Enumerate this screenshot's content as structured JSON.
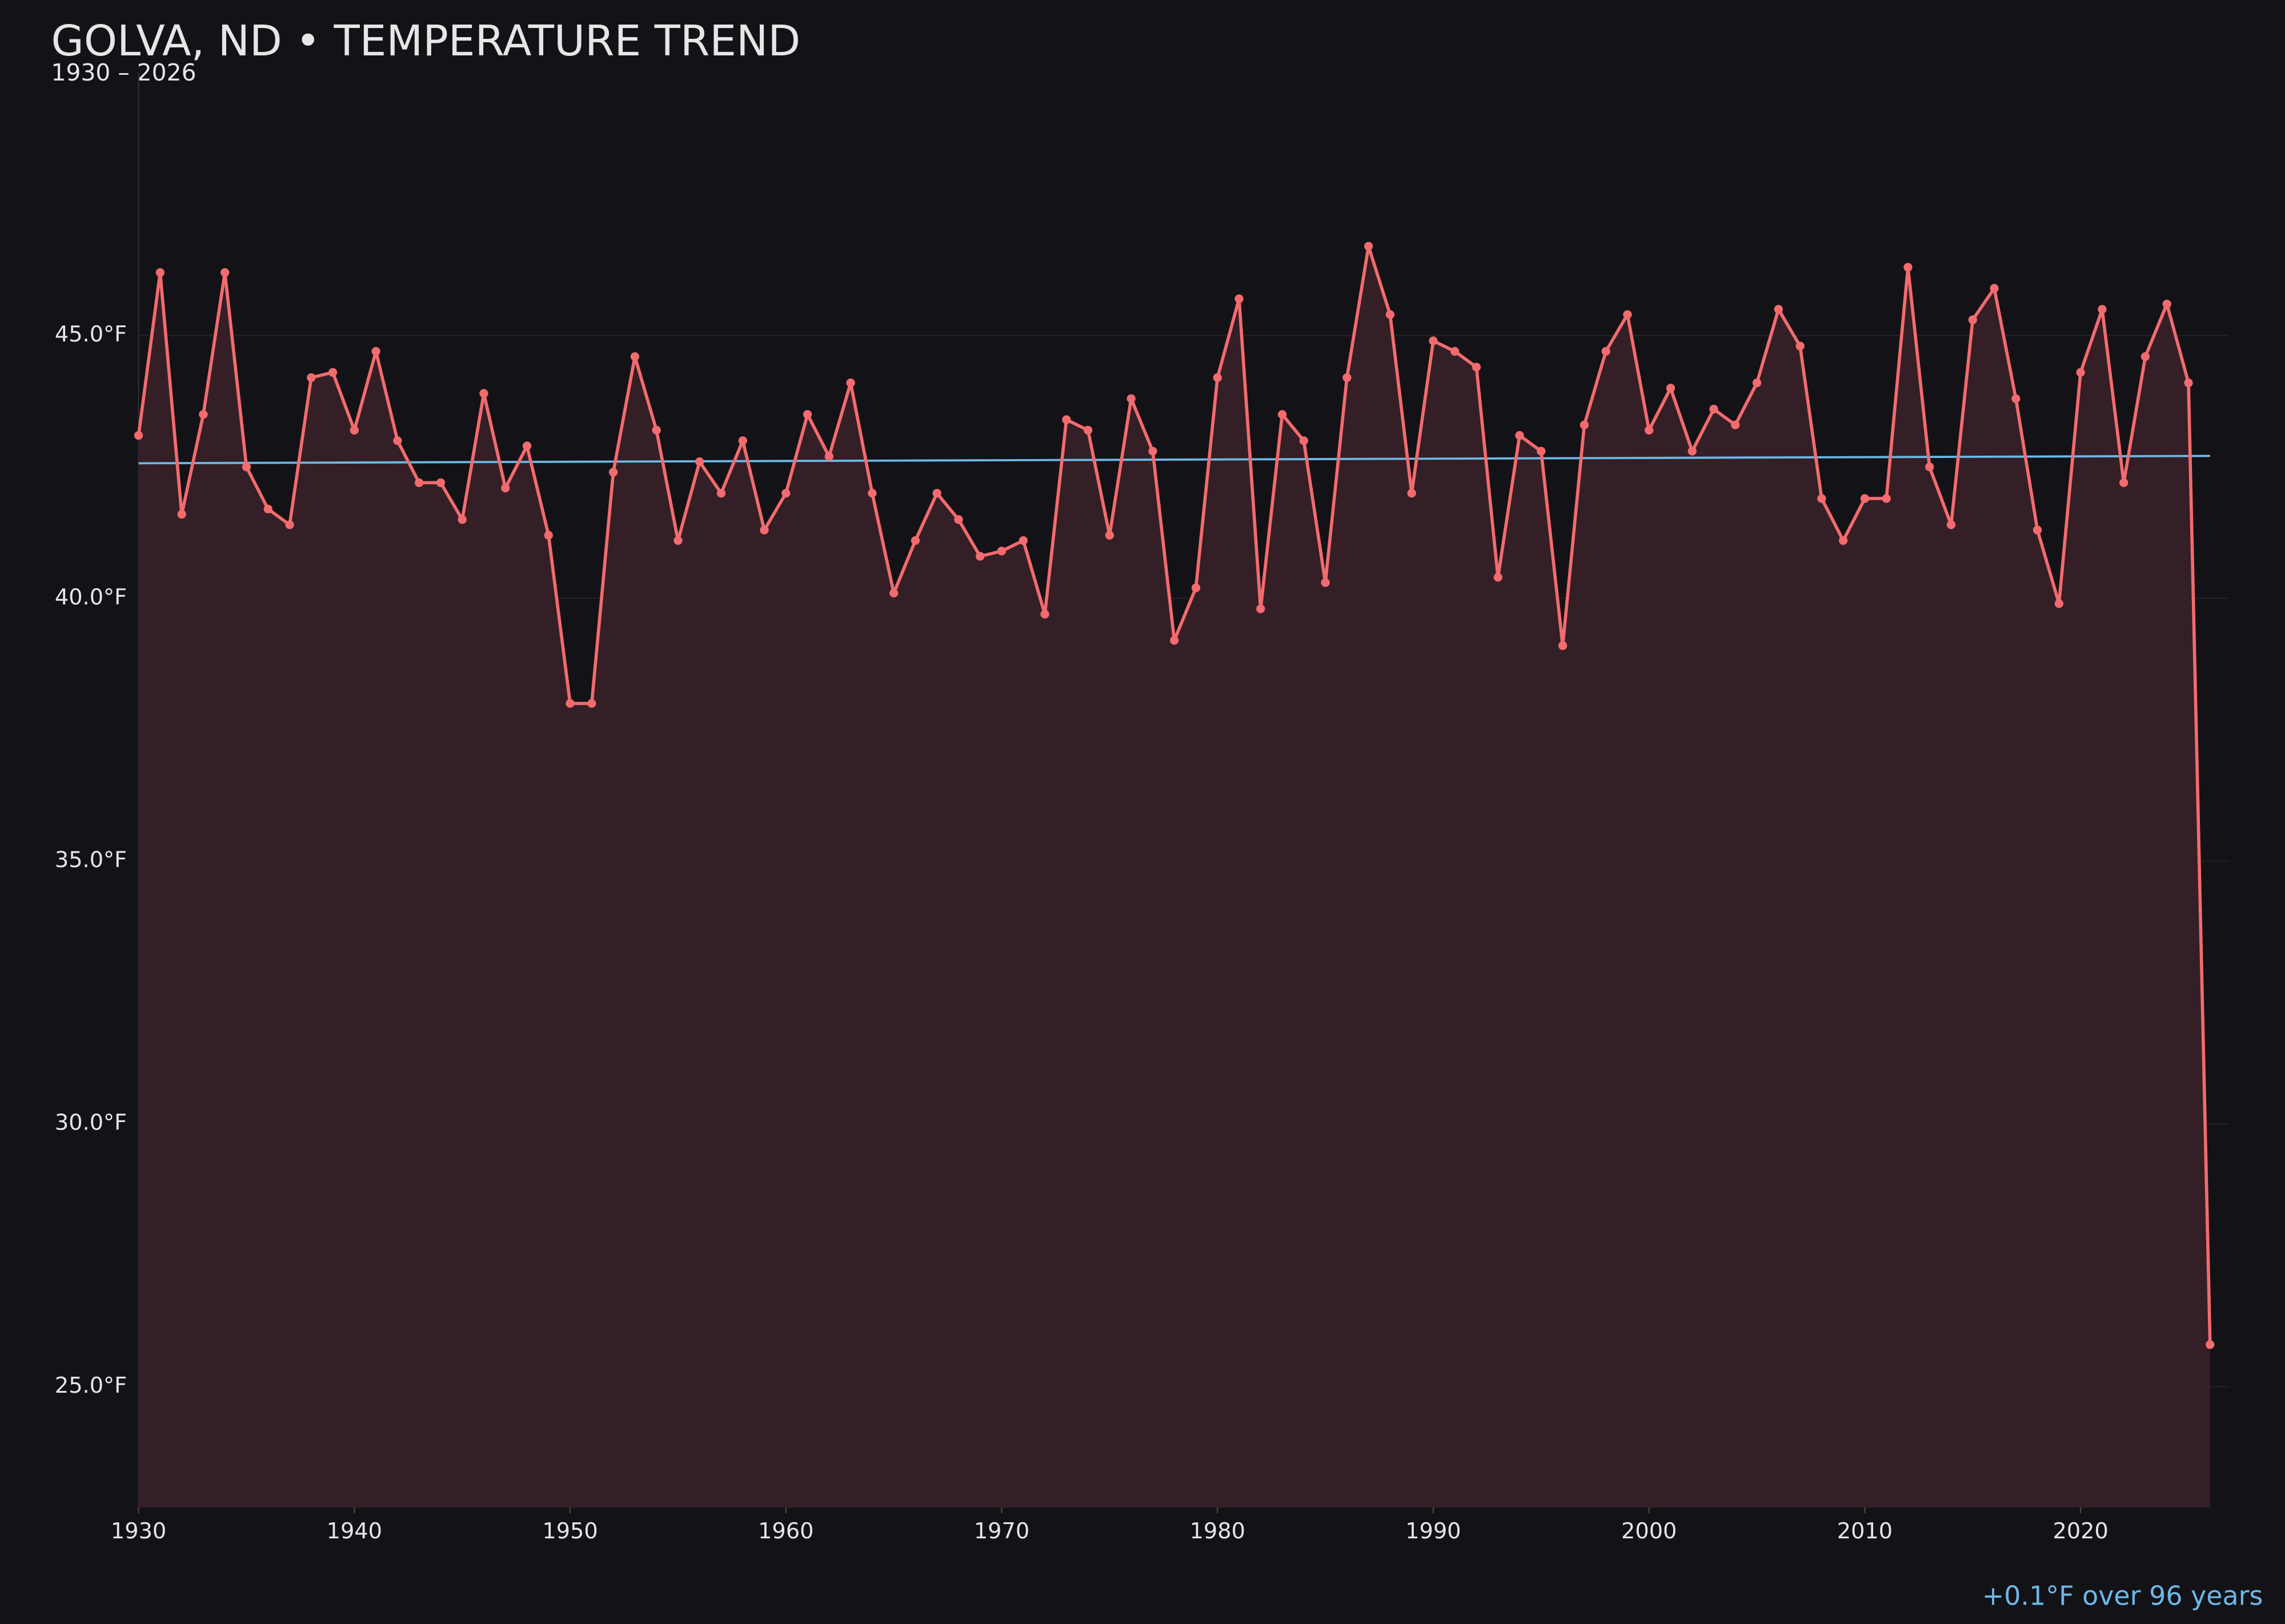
{
  "chart_data": {
    "type": "line",
    "title": "GOLVA, ND • TEMPERATURE TREND",
    "subtitle": "1930 – 2026",
    "annotation": "+0.1°F over 96 years",
    "x": [
      1930,
      1931,
      1932,
      1933,
      1934,
      1935,
      1936,
      1937,
      1938,
      1939,
      1940,
      1941,
      1942,
      1943,
      1944,
      1945,
      1946,
      1947,
      1948,
      1949,
      1950,
      1951,
      1952,
      1953,
      1954,
      1955,
      1956,
      1957,
      1958,
      1959,
      1960,
      1961,
      1962,
      1963,
      1964,
      1965,
      1966,
      1967,
      1968,
      1969,
      1970,
      1971,
      1972,
      1973,
      1974,
      1975,
      1976,
      1977,
      1978,
      1979,
      1980,
      1981,
      1982,
      1983,
      1984,
      1985,
      1986,
      1987,
      1988,
      1989,
      1990,
      1991,
      1992,
      1993,
      1994,
      1995,
      1996,
      1997,
      1998,
      1999,
      2000,
      2001,
      2002,
      2003,
      2004,
      2005,
      2006,
      2007,
      2008,
      2009,
      2010,
      2011,
      2012,
      2013,
      2014,
      2015,
      2016,
      2017,
      2018,
      2019,
      2020,
      2021,
      2022,
      2023,
      2024,
      2025,
      2026
    ],
    "values": [
      43.1,
      46.2,
      41.6,
      43.5,
      46.2,
      42.5,
      41.7,
      41.4,
      44.2,
      44.3,
      43.2,
      44.7,
      43.0,
      42.2,
      42.2,
      41.5,
      43.9,
      42.1,
      42.9,
      41.2,
      38.0,
      38.0,
      42.4,
      44.6,
      43.2,
      41.1,
      42.6,
      42.0,
      43.0,
      41.3,
      42.0,
      43.5,
      42.7,
      44.1,
      42.0,
      40.1,
      41.1,
      42.0,
      41.5,
      40.8,
      40.9,
      41.1,
      39.7,
      43.4,
      43.2,
      41.2,
      43.8,
      42.8,
      39.2,
      40.2,
      44.2,
      45.7,
      39.8,
      43.5,
      43.0,
      40.3,
      44.2,
      46.7,
      45.4,
      42.0,
      44.9,
      44.7,
      44.4,
      40.4,
      43.1,
      42.8,
      39.1,
      43.3,
      44.7,
      45.4,
      43.2,
      44.0,
      42.8,
      43.6,
      43.3,
      44.1,
      45.5,
      44.8,
      41.9,
      41.1,
      41.9,
      41.9,
      46.3,
      42.5,
      41.4,
      45.3,
      45.9,
      43.8,
      41.3,
      39.9,
      44.3,
      45.5,
      42.2,
      44.6,
      45.6,
      44.1,
      25.8
    ],
    "color": "#f26b6e",
    "area_color": "#341f26",
    "trend": {
      "x": [
        1930,
        2026
      ],
      "values": [
        42.57,
        42.71
      ],
      "color": "#6cb8e6"
    },
    "xlim": [
      1930,
      2026.9
    ],
    "ylim": [
      22.7,
      50.0
    ],
    "xticks": [
      1930,
      1940,
      1950,
      1960,
      1970,
      1980,
      1990,
      2000,
      2010,
      2020
    ],
    "yticks": [
      {
        "value": 25,
        "label": "25.0°F"
      },
      {
        "value": 30,
        "label": "30.0°F"
      },
      {
        "value": 35,
        "label": "35.0°F"
      },
      {
        "value": 40,
        "label": "40.0°F"
      },
      {
        "value": 45,
        "label": "45.0°F"
      }
    ],
    "grid": true
  }
}
